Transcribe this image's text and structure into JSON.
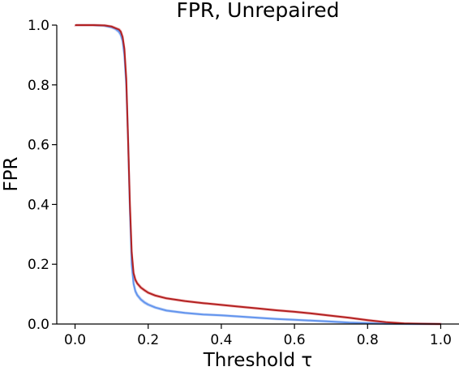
{
  "chart_data": {
    "type": "line",
    "title": "FPR, Unrepaired",
    "xlabel": "Threshold τ",
    "ylabel": "FPR",
    "xlim": [
      -0.05,
      1.05
    ],
    "ylim": [
      0,
      1
    ],
    "xticks": [
      0.0,
      0.2,
      0.4,
      0.6,
      0.8,
      1.0
    ],
    "xtick_labels": [
      "0.0",
      "0.2",
      "0.4",
      "0.6",
      "0.8",
      "1.0"
    ],
    "yticks": [
      0.0,
      0.2,
      0.4,
      0.6,
      0.8,
      1.0
    ],
    "ytick_labels": [
      "0.0",
      "0.2",
      "0.4",
      "0.6",
      "0.8",
      "1.0"
    ],
    "grid": false,
    "legend": "none",
    "spines": "left-bottom",
    "series": [
      {
        "color": "#6495ed",
        "band_color": "#aec6f5",
        "x": [
          0.0,
          0.05,
          0.08,
          0.1,
          0.11,
          0.12,
          0.125,
          0.13,
          0.135,
          0.14,
          0.145,
          0.15,
          0.155,
          0.16,
          0.165,
          0.17,
          0.18,
          0.19,
          0.2,
          0.22,
          0.25,
          0.3,
          0.35,
          0.4,
          0.45,
          0.5,
          0.55,
          0.6,
          0.65,
          0.7,
          0.75,
          0.8,
          0.85,
          0.9,
          0.95,
          1.0
        ],
        "y": [
          1.0,
          1.0,
          0.998,
          0.993,
          0.988,
          0.978,
          0.968,
          0.948,
          0.9,
          0.8,
          0.62,
          0.38,
          0.2,
          0.135,
          0.11,
          0.097,
          0.082,
          0.072,
          0.065,
          0.055,
          0.045,
          0.037,
          0.032,
          0.029,
          0.025,
          0.021,
          0.017,
          0.014,
          0.011,
          0.008,
          0.005,
          0.003,
          0.001,
          0.0005,
          0.0002,
          0.0
        ]
      },
      {
        "color": "#b22222",
        "band_color": "#f2a0a0",
        "x": [
          0.0,
          0.05,
          0.08,
          0.1,
          0.11,
          0.12,
          0.125,
          0.13,
          0.135,
          0.14,
          0.145,
          0.15,
          0.155,
          0.16,
          0.165,
          0.17,
          0.18,
          0.19,
          0.2,
          0.22,
          0.25,
          0.3,
          0.35,
          0.4,
          0.45,
          0.5,
          0.55,
          0.6,
          0.65,
          0.7,
          0.75,
          0.8,
          0.85,
          0.9,
          0.95,
          1.0
        ],
        "y": [
          1.0,
          1.0,
          0.999,
          0.995,
          0.99,
          0.985,
          0.978,
          0.96,
          0.92,
          0.82,
          0.62,
          0.4,
          0.24,
          0.17,
          0.148,
          0.136,
          0.122,
          0.113,
          0.105,
          0.095,
          0.086,
          0.077,
          0.07,
          0.064,
          0.058,
          0.052,
          0.046,
          0.041,
          0.035,
          0.028,
          0.021,
          0.013,
          0.006,
          0.002,
          0.0008,
          0.0
        ]
      }
    ]
  }
}
